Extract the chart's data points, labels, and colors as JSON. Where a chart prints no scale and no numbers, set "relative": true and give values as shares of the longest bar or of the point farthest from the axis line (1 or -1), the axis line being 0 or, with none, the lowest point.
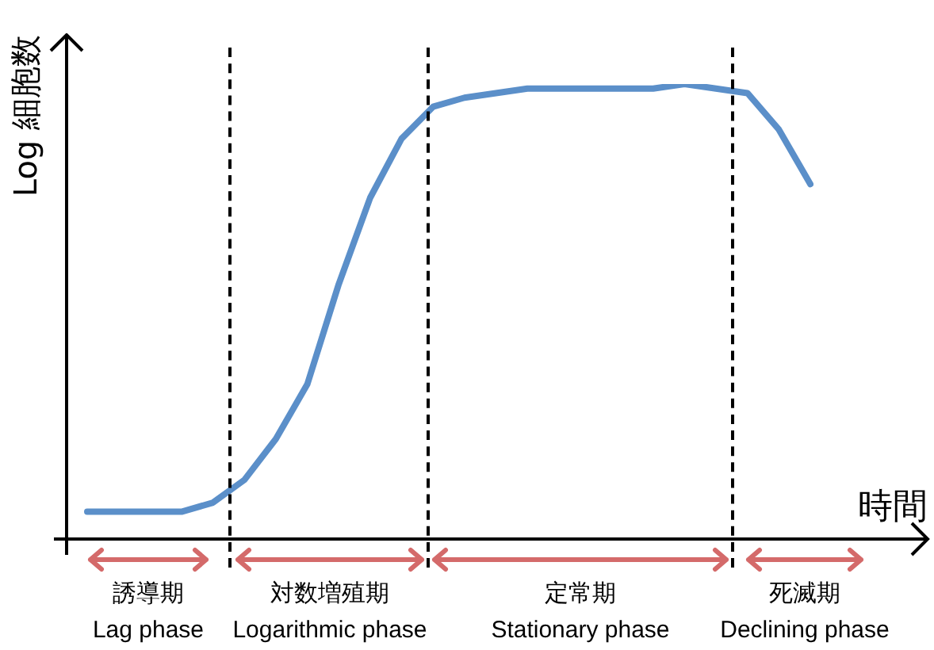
{
  "chart_data": {
    "type": "line",
    "relative": true,
    "xlabel": "時間",
    "ylabel": "Log 細胞数",
    "marker": "none",
    "line_style": "solid",
    "categories": [
      null,
      null,
      null,
      null,
      null,
      null,
      null,
      null,
      null,
      null,
      null,
      null,
      null,
      null,
      null,
      null,
      null,
      null,
      null,
      null,
      null,
      null,
      null,
      null
    ],
    "series": [
      {
        "color": "#5b8fc9",
        "values": [
          0.06,
          0.06,
          0.06,
          0.06,
          0.08,
          0.13,
          0.22,
          0.34,
          0.56,
          0.75,
          0.88,
          0.95,
          0.97,
          0.98,
          0.99,
          0.99,
          0.99,
          0.99,
          0.99,
          1.0,
          0.99,
          0.98,
          0.9,
          0.78
        ]
      }
    ],
    "annotations": [
      "誘導期\nLag phase",
      "対数増殖期\nLogarithmic phase",
      "定常期\nStationary phase",
      "死滅期\nDeclining phase"
    ]
  }
}
